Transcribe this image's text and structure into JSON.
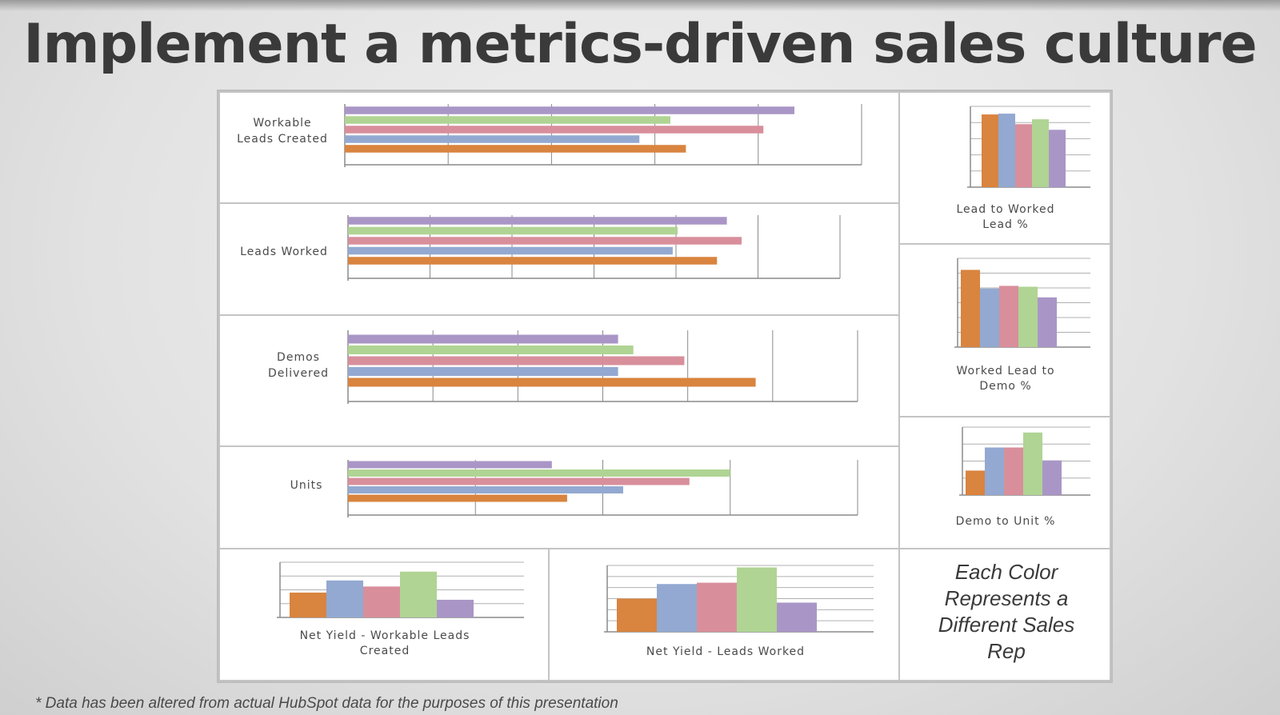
{
  "slide": {
    "title": "Implement a metrics-driven sales culture",
    "footnote": "* Data has been altered from actual HubSpot data for the purposes of this presentation",
    "note": "Each Color Represents a Different Sales Rep"
  },
  "colors": {
    "orange": "#d9843f",
    "blue": "#93a9d1",
    "pink": "#d88f9b",
    "green": "#b0d494",
    "purple": "#a996c6"
  },
  "chart_data": [
    {
      "type": "bar",
      "orientation": "horizontal",
      "id": "workable-leads",
      "title_lines": [
        "Workable",
        "Leads Created"
      ],
      "series_order": [
        "purple",
        "green",
        "pink",
        "blue",
        "orange"
      ],
      "values": [
        87,
        63,
        81,
        57,
        66
      ],
      "xlim": [
        0,
        100
      ],
      "gridlines": 5
    },
    {
      "type": "bar",
      "orientation": "horizontal",
      "id": "leads-worked",
      "title_lines": [
        "Leads Worked"
      ],
      "series_order": [
        "purple",
        "green",
        "pink",
        "blue",
        "orange"
      ],
      "values": [
        77,
        67,
        80,
        66,
        75
      ],
      "xlim": [
        0,
        100
      ],
      "gridlines": 6
    },
    {
      "type": "bar",
      "orientation": "horizontal",
      "id": "demos-delivered",
      "title_lines": [
        "Demos",
        "Delivered"
      ],
      "series_order": [
        "purple",
        "green",
        "pink",
        "blue",
        "orange"
      ],
      "values": [
        53,
        56,
        66,
        53,
        80
      ],
      "xlim": [
        0,
        100
      ],
      "gridlines": 6
    },
    {
      "type": "bar",
      "orientation": "horizontal",
      "id": "units",
      "title_lines": [
        "Units"
      ],
      "series_order": [
        "purple",
        "green",
        "pink",
        "blue",
        "orange"
      ],
      "values": [
        40,
        75,
        67,
        54,
        43
      ],
      "xlim": [
        0,
        100
      ],
      "gridlines": 4
    },
    {
      "type": "bar",
      "id": "lead-to-worked",
      "title_lines": [
        "Lead to Worked",
        "Lead %"
      ],
      "series_order": [
        "orange",
        "blue",
        "pink",
        "green",
        "purple"
      ],
      "values": [
        90,
        91,
        78,
        84,
        71
      ],
      "ylim": [
        0,
        100
      ],
      "gridlines": 5
    },
    {
      "type": "bar",
      "id": "worked-to-demo",
      "title_lines": [
        "Worked Lead to",
        "Demo %"
      ],
      "series_order": [
        "orange",
        "blue",
        "pink",
        "green",
        "purple"
      ],
      "values": [
        87,
        66,
        69,
        68,
        56
      ],
      "ylim": [
        0,
        100
      ],
      "gridlines": 6
    },
    {
      "type": "bar",
      "id": "demo-to-unit",
      "title_lines": [
        "Demo to Unit %"
      ],
      "series_order": [
        "orange",
        "blue",
        "pink",
        "green",
        "purple"
      ],
      "values": [
        36,
        70,
        70,
        92,
        51
      ],
      "ylim": [
        0,
        100
      ],
      "gridlines": 4
    },
    {
      "type": "bar",
      "id": "net-yield-workable",
      "title_lines": [
        "Net Yield - Workable Leads",
        "Created"
      ],
      "series_order": [
        "orange",
        "blue",
        "pink",
        "green",
        "purple"
      ],
      "values": [
        45,
        67,
        56,
        83,
        32
      ],
      "ylim": [
        0,
        100
      ],
      "gridlines": 4
    },
    {
      "type": "bar",
      "id": "net-yield-worked",
      "title_lines": [
        "Net Yield - Leads Worked"
      ],
      "series_order": [
        "orange",
        "blue",
        "pink",
        "green",
        "purple"
      ],
      "values": [
        50,
        72,
        74,
        97,
        44
      ],
      "ylim": [
        0,
        100
      ],
      "gridlines": 6
    }
  ]
}
